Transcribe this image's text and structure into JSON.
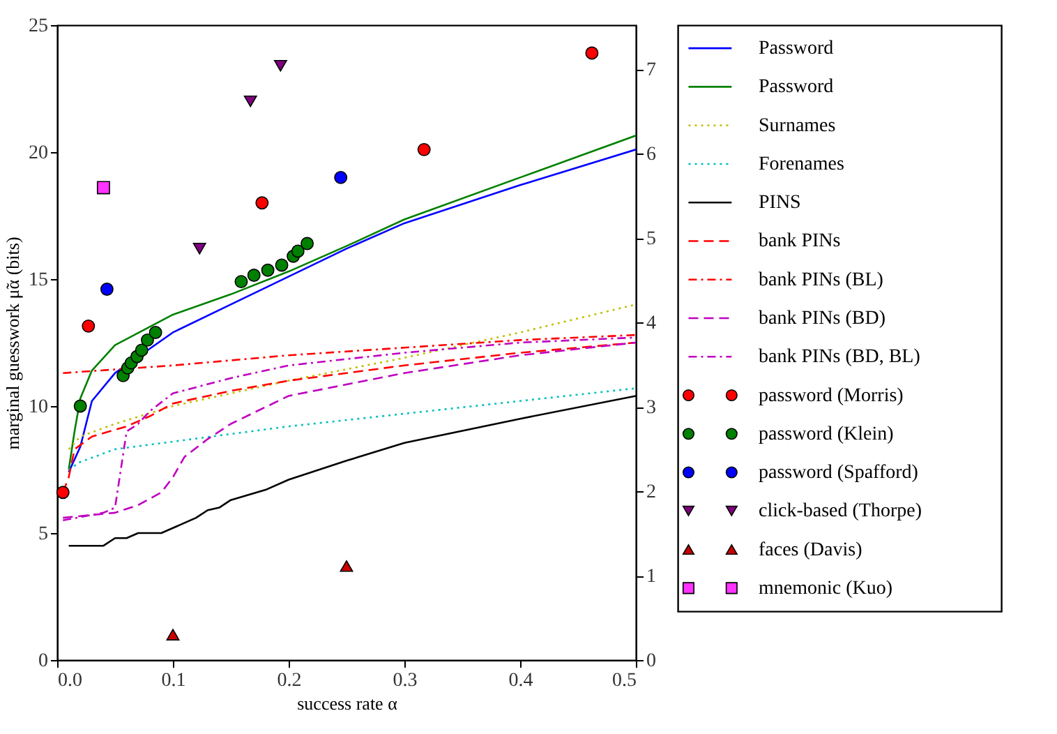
{
  "chart_data": {
    "type": "line",
    "xlabel": "success rate α",
    "ylabel": "marginal guesswork μ̃α (bits)",
    "xlim": [
      0,
      0.5
    ],
    "xticks": [
      {
        "value": 0,
        "label": "0.0"
      },
      0.1,
      0.2,
      0.3,
      0.4,
      0.5
    ],
    "ylim": [
      0,
      25
    ],
    "yticks": [
      0,
      5,
      10,
      15,
      20,
      25
    ],
    "y2lim": [
      0,
      7.525
    ],
    "y2ticks": [
      0,
      1,
      2,
      3,
      4,
      5,
      6,
      7
    ],
    "grid": false,
    "legend": "right",
    "series": [
      {
        "name": "Password",
        "color": "#0000ff",
        "line_style": "solid",
        "x": [
          0.01,
          0.02,
          0.03,
          0.05,
          0.1,
          0.15,
          0.2,
          0.25,
          0.3,
          0.4,
          0.5
        ],
        "values": [
          7.4,
          8.4,
          10.2,
          11.3,
          12.9,
          14.0,
          15.1,
          16.2,
          17.2,
          18.7,
          20.1
        ]
      },
      {
        "name": "Password",
        "color": "#008000",
        "line_style": "solid",
        "x": [
          0.01,
          0.015,
          0.02,
          0.03,
          0.05,
          0.1,
          0.15,
          0.2,
          0.25,
          0.3,
          0.4,
          0.5
        ],
        "values": [
          7.5,
          9.0,
          10.3,
          11.4,
          12.4,
          13.6,
          14.4,
          15.3,
          16.3,
          17.35,
          19.0,
          20.65
        ]
      },
      {
        "name": "Surnames",
        "color": "#bfbf00",
        "line_style": "dotted",
        "x": [
          0.01,
          0.02,
          0.05,
          0.1,
          0.2,
          0.3,
          0.4,
          0.5
        ],
        "values": [
          8.3,
          8.8,
          9.3,
          10.0,
          11.0,
          11.9,
          12.9,
          14.0
        ]
      },
      {
        "name": "Forenames",
        "color": "#00bfbf",
        "line_style": "dotted",
        "x": [
          0.01,
          0.02,
          0.05,
          0.1,
          0.2,
          0.3,
          0.4,
          0.5
        ],
        "values": [
          7.5,
          7.8,
          8.3,
          8.6,
          9.2,
          9.7,
          10.2,
          10.7
        ]
      },
      {
        "name": "PINS",
        "color": "#000000",
        "line_style": "solid",
        "x": [
          0.01,
          0.04,
          0.05,
          0.06,
          0.07,
          0.09,
          0.1,
          0.12,
          0.13,
          0.14,
          0.15,
          0.18,
          0.2,
          0.25,
          0.3,
          0.4,
          0.5
        ],
        "values": [
          4.5,
          4.5,
          4.8,
          4.8,
          5.0,
          5.0,
          5.2,
          5.6,
          5.9,
          6.0,
          6.3,
          6.7,
          7.1,
          7.85,
          8.55,
          9.5,
          10.4
        ]
      },
      {
        "name": "bank PINs",
        "color": "#ff0000",
        "line_style": "dashed",
        "x": [
          0.005,
          0.01,
          0.015,
          0.03,
          0.06,
          0.08,
          0.1,
          0.15,
          0.2,
          0.3,
          0.4,
          0.5
        ],
        "values": [
          6.6,
          7.2,
          8.3,
          8.8,
          9.2,
          9.6,
          10.1,
          10.6,
          11.0,
          11.6,
          12.1,
          12.5
        ]
      },
      {
        "name": "bank PINs (BL)",
        "color": "#ff0000",
        "line_style": "dashdot",
        "x": [
          0.005,
          0.1,
          0.2,
          0.3,
          0.4,
          0.5
        ],
        "values": [
          11.3,
          11.6,
          12.0,
          12.3,
          12.6,
          12.8
        ]
      },
      {
        "name": "bank PINs (BD)",
        "color": "#bf00bf",
        "line_style": "dashed",
        "x": [
          0.005,
          0.05,
          0.07,
          0.09,
          0.1,
          0.11,
          0.13,
          0.15,
          0.2,
          0.3,
          0.4,
          0.5
        ],
        "values": [
          5.6,
          5.8,
          6.1,
          6.6,
          7.2,
          8.0,
          8.7,
          9.3,
          10.4,
          11.3,
          12.0,
          12.5
        ]
      },
      {
        "name": "bank PINs (BD, BL)",
        "color": "#bf00bf",
        "line_style": "dashdot",
        "x": [
          0.005,
          0.04,
          0.05,
          0.06,
          0.07,
          0.08,
          0.1,
          0.15,
          0.2,
          0.3,
          0.4,
          0.5
        ],
        "values": [
          5.5,
          5.8,
          6.0,
          9.0,
          9.3,
          9.8,
          10.5,
          11.1,
          11.6,
          12.1,
          12.5,
          12.7
        ]
      },
      {
        "type": "scatter",
        "name": "password (Morris)",
        "color": "#ff0000",
        "marker": "circle",
        "x": [
          0.005,
          0.027,
          0.177,
          0.317,
          0.462
        ],
        "values": [
          6.6,
          13.15,
          18.0,
          20.1,
          23.9
        ]
      },
      {
        "type": "scatter",
        "name": "password (Klein)",
        "color": "#008000",
        "marker": "circle",
        "x": [
          0.02,
          0.057,
          0.061,
          0.064,
          0.069,
          0.073,
          0.078,
          0.085,
          0.159,
          0.17,
          0.182,
          0.194,
          0.204,
          0.208,
          0.216
        ],
        "values": [
          10.0,
          11.2,
          11.5,
          11.7,
          11.95,
          12.2,
          12.6,
          12.9,
          14.9,
          15.15,
          15.35,
          15.55,
          15.9,
          16.1,
          16.4
        ]
      },
      {
        "type": "scatter",
        "name": "password (Spafford)",
        "color": "#0000ff",
        "marker": "circle",
        "x": [
          0.043,
          0.245
        ],
        "values": [
          14.6,
          19.0
        ]
      },
      {
        "type": "scatter",
        "name": "click-based (Thorpe)",
        "color": "#800080",
        "marker": "triangle-down",
        "x": [
          0.123,
          0.167,
          0.193
        ],
        "values": [
          16.2,
          22.0,
          23.4
        ]
      },
      {
        "type": "scatter",
        "name": "faces (Davis)",
        "color": "#cc0000",
        "marker": "triangle",
        "x": [
          0.1,
          0.25
        ],
        "values": [
          1.0,
          3.7
        ]
      },
      {
        "type": "scatter",
        "name": "mnemonic (Kuo)",
        "color": "#ff33ff",
        "marker": "square",
        "x": [
          0.04
        ],
        "values": [
          18.6
        ]
      }
    ]
  }
}
